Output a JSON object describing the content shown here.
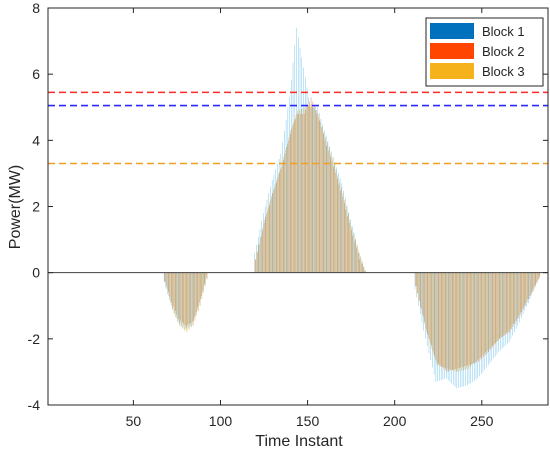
{
  "chart_data": {
    "type": "bar",
    "title": "",
    "xlabel": "Time Instant",
    "ylabel": "Power(MW)",
    "xlim": [
      1,
      288
    ],
    "ylim": [
      -4,
      8
    ],
    "x_ticks": [
      50,
      100,
      150,
      200,
      250
    ],
    "y_ticks": [
      -4,
      -2,
      0,
      2,
      4,
      6,
      8
    ],
    "grid": false,
    "legend_position": "top-right",
    "series": [
      {
        "name": "Block 1",
        "color": "#0072BD"
      },
      {
        "name": "Block 2",
        "color": "#FF4500"
      },
      {
        "name": "Block 3",
        "color": "#F5B21B"
      }
    ],
    "drawn_bar_colors": {
      "Block 1": "#7fc8ec",
      "Block 2": "#e0915f",
      "Block 3": "#e6b450"
    },
    "reference_lines": [
      {
        "y": 5.45,
        "color": "#ff2a2a",
        "style": "dashed"
      },
      {
        "y": 5.05,
        "color": "#2a2aff",
        "style": "dashed"
      },
      {
        "y": 3.3,
        "color": "#f0a020",
        "style": "dashed"
      }
    ],
    "segments": [
      {
        "x": [
          68,
          72,
          76,
          80,
          84,
          88,
          92
        ],
        "values": {
          "Block 1": [
            -0.3,
            -1.0,
            -1.5,
            -1.7,
            -1.6,
            -1.0,
            -0.2
          ],
          "Block 2": [
            -0.25,
            -0.9,
            -1.4,
            -1.6,
            -1.5,
            -0.9,
            -0.15
          ],
          "Block 3": [
            -0.3,
            -1.1,
            -1.6,
            -1.8,
            -1.6,
            -1.0,
            -0.2
          ]
        }
      },
      {
        "x": [
          120,
          125,
          130,
          135,
          140,
          144,
          148,
          152,
          156,
          160,
          165,
          170,
          175,
          180,
          183
        ],
        "values": {
          "Block 1": [
            0.6,
            1.8,
            2.8,
            3.6,
            5.3,
            7.4,
            6.2,
            5.0,
            5.0,
            4.3,
            3.5,
            2.7,
            1.6,
            0.6,
            0.1
          ],
          "Block 2": [
            0.4,
            1.5,
            2.4,
            3.2,
            4.2,
            4.8,
            4.8,
            5.3,
            4.8,
            4.0,
            3.2,
            2.3,
            1.3,
            0.4,
            0.05
          ],
          "Block 3": [
            0.4,
            1.6,
            2.5,
            3.3,
            4.3,
            4.9,
            5.0,
            5.1,
            4.7,
            4.1,
            3.3,
            2.4,
            1.4,
            0.5,
            0.05
          ]
        }
      },
      {
        "x": [
          212,
          218,
          224,
          230,
          236,
          242,
          248,
          254,
          260,
          266,
          272,
          278,
          283
        ],
        "values": {
          "Block 1": [
            -0.5,
            -2.0,
            -3.3,
            -3.2,
            -3.5,
            -3.4,
            -3.2,
            -2.8,
            -2.4,
            -2.1,
            -1.5,
            -0.8,
            -0.2
          ],
          "Block 2": [
            -0.4,
            -1.7,
            -2.7,
            -3.0,
            -2.9,
            -2.8,
            -2.7,
            -2.4,
            -2.0,
            -1.8,
            -1.3,
            -0.7,
            -0.15
          ],
          "Block 3": [
            -0.4,
            -1.8,
            -2.8,
            -2.9,
            -3.0,
            -2.9,
            -2.6,
            -2.3,
            -2.0,
            -1.7,
            -1.2,
            -0.6,
            -0.1
          ]
        }
      }
    ]
  }
}
